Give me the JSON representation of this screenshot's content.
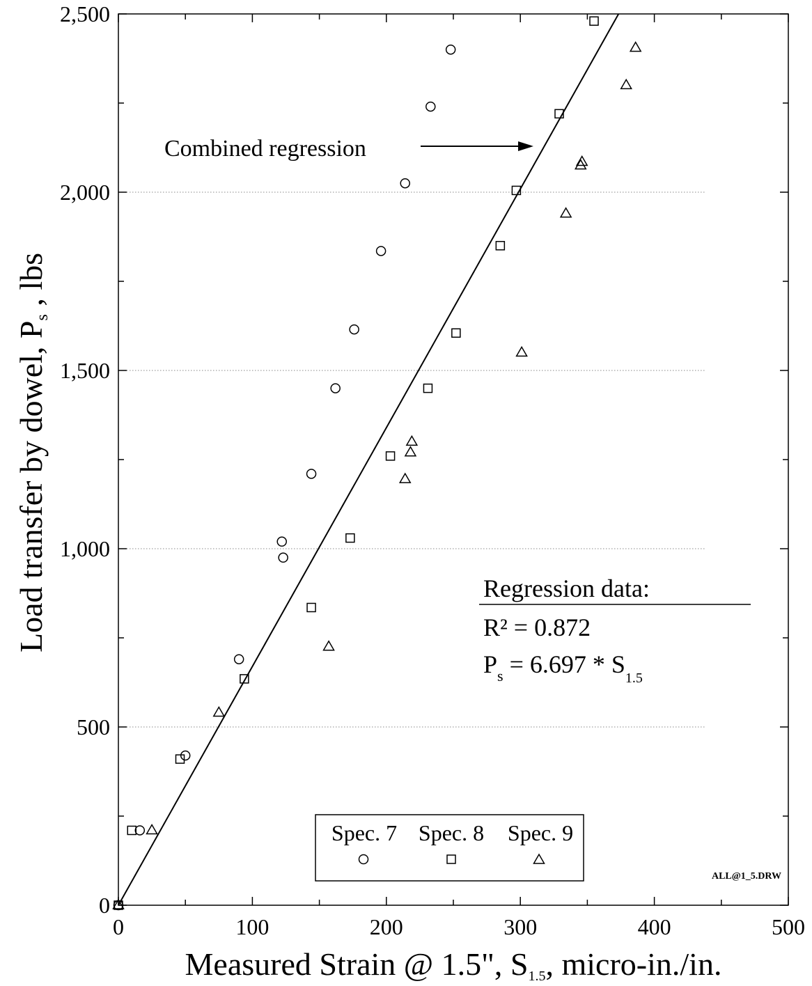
{
  "chart_data": {
    "type": "scatter",
    "xlabel": "Measured Strain @ 1.5\",  S",
    "xlabel_sub": "1.5",
    "xlabel_tail": ",  micro-in./in.",
    "ylabel": "Load transfer by dowel,  P",
    "ylabel_sub": "s",
    "ylabel_tail": " ,  lbs",
    "xlim": [
      0,
      500
    ],
    "ylim": [
      0,
      2500
    ],
    "x_ticks": [
      0,
      100,
      200,
      300,
      400,
      500
    ],
    "x_tick_labels": [
      "0",
      "100",
      "200",
      "300",
      "400",
      "500"
    ],
    "y_ticks": [
      0,
      500,
      1000,
      1500,
      2000,
      2500
    ],
    "y_tick_labels": [
      "0",
      "500",
      "1,000",
      "1,500",
      "2,000",
      "2,500"
    ],
    "grid": "horizontal dotted lines at labeled y ticks",
    "legend_position": "bottom-center",
    "series": [
      {
        "name": "Spec. 7",
        "marker": "circle",
        "points": [
          [
            0,
            0
          ],
          [
            16,
            210
          ],
          [
            50,
            420
          ],
          [
            90,
            690
          ],
          [
            122,
            1020
          ],
          [
            123,
            975
          ],
          [
            144,
            1210
          ],
          [
            162,
            1450
          ],
          [
            176,
            1615
          ],
          [
            196,
            1835
          ],
          [
            214,
            2025
          ],
          [
            233,
            2240
          ],
          [
            248,
            2400
          ]
        ]
      },
      {
        "name": "Spec. 8",
        "marker": "square",
        "points": [
          [
            0,
            0
          ],
          [
            10,
            210
          ],
          [
            46,
            410
          ],
          [
            94,
            635
          ],
          [
            144,
            835
          ],
          [
            173,
            1030
          ],
          [
            203,
            1260
          ],
          [
            231,
            1450
          ],
          [
            252,
            1605
          ],
          [
            285,
            1850
          ],
          [
            297,
            2005
          ],
          [
            329,
            2220
          ],
          [
            355,
            2480
          ]
        ]
      },
      {
        "name": "Spec. 9",
        "marker": "triangle",
        "points": [
          [
            0,
            0
          ],
          [
            25,
            210
          ],
          [
            75,
            540
          ],
          [
            157,
            725
          ],
          [
            214,
            1195
          ],
          [
            218,
            1270
          ],
          [
            219,
            1300
          ],
          [
            301,
            1550
          ],
          [
            334,
            1940
          ],
          [
            345,
            2075
          ],
          [
            346,
            2085
          ],
          [
            379,
            2300
          ],
          [
            386,
            2405
          ]
        ]
      }
    ],
    "regression": {
      "label": "Combined regression",
      "slope": 6.697,
      "line_x": [
        0,
        373.3
      ]
    },
    "regression_box": {
      "title": "Regression data:",
      "r2_label": "R² = 0.872",
      "eq_left": "P",
      "eq_left_sub": "s",
      "eq_mid": " = 6.697 * S",
      "eq_right_sub": "1.5"
    },
    "file_tag": "ALL@1_5.DRW"
  }
}
